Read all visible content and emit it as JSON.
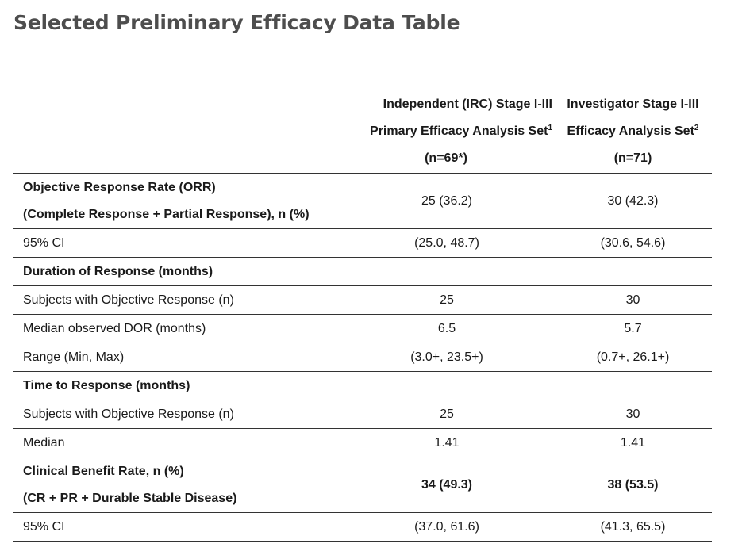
{
  "page": {
    "title": "Selected Preliminary Efficacy Data Table"
  },
  "table": {
    "headers": [
      {
        "line1": "Independent (IRC) Stage I-III",
        "line2": "Primary Efficacy Analysis Set",
        "sup": "1",
        "line3": "(n=69*)"
      },
      {
        "line1": "Investigator Stage I-III",
        "line2": "Efficacy Analysis Set",
        "sup": "2",
        "line3": "(n=71)"
      }
    ],
    "rows": [
      {
        "label1": "Objective Response Rate (ORR)",
        "label2": "(Complete Response + Partial Response), n (%)",
        "col1": "25 (36.2)",
        "col2": "30 (42.3)"
      },
      {
        "label": "95% CI",
        "col1": "(25.0, 48.7)",
        "col2": "(30.6, 54.6)"
      },
      {
        "label": "Duration of Response (months)",
        "col1": "",
        "col2": ""
      },
      {
        "label": "Subjects with Objective Response (n)",
        "col1": "25",
        "col2": "30"
      },
      {
        "label": "Median observed DOR (months)",
        "col1": "6.5",
        "col2": "5.7"
      },
      {
        "label": "Range (Min, Max)",
        "col1": "(3.0+, 23.5+)",
        "col2": "(0.7+, 26.1+)"
      },
      {
        "label": "Time to Response (months)",
        "col1": "",
        "col2": ""
      },
      {
        "label": "Subjects with Objective Response (n)",
        "col1": "25",
        "col2": "30"
      },
      {
        "label": "Median",
        "col1": "1.41",
        "col2": "1.41"
      },
      {
        "label1": "Clinical Benefit Rate, n (%)",
        "label2": "(CR + PR + Durable Stable Disease)",
        "col1": "34 (49.3)",
        "col2": "38 (53.5)"
      },
      {
        "label": "95% CI",
        "col1": "(37.0, 61.6)",
        "col2": "(41.3, 65.5)"
      }
    ]
  }
}
